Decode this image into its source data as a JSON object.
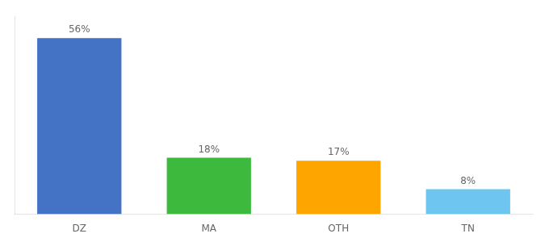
{
  "chart_data": {
    "type": "bar",
    "categories": [
      "DZ",
      "MA",
      "OTH",
      "TN"
    ],
    "values": [
      56,
      18,
      17,
      8
    ],
    "value_labels": [
      "56%",
      "18%",
      "17%",
      "8%"
    ],
    "data_labels": true,
    "colors": [
      "#4472c4",
      "#3dba3d",
      "#ffa500",
      "#6ec6f0"
    ],
    "ylim": [
      0,
      63
    ],
    "grid": false,
    "tick_labels": "x"
  }
}
